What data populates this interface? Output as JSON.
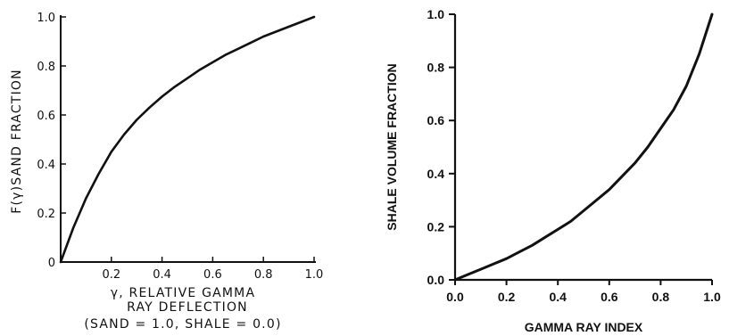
{
  "chart_data": [
    {
      "type": "line",
      "ylabel": "F(γ)SAND FRACTION",
      "xlabel_lines": [
        "γ, RELATIVE  GAMMA",
        "RAY  DEFLECTION",
        "(SAND = 1.0,  SHALE = 0.0)"
      ],
      "xlim": [
        0,
        1
      ],
      "ylim": [
        0,
        1
      ],
      "x_ticks": [
        "0.2",
        "0.4",
        "0.6",
        "0.8",
        "1.0"
      ],
      "y_ticks": [
        "0",
        "0.2",
        "0.4",
        "0.6",
        "0.8",
        "1.0"
      ],
      "series": [
        {
          "x": [
            0,
            0.05,
            0.1,
            0.15,
            0.2,
            0.25,
            0.3,
            0.35,
            0.4,
            0.45,
            0.5,
            0.55,
            0.6,
            0.65,
            0.7,
            0.75,
            0.8,
            0.85,
            0.9,
            0.95,
            1.0
          ],
          "y": [
            0,
            0.14,
            0.26,
            0.36,
            0.45,
            0.52,
            0.58,
            0.63,
            0.675,
            0.715,
            0.75,
            0.785,
            0.815,
            0.845,
            0.87,
            0.895,
            0.92,
            0.94,
            0.96,
            0.98,
            1.0
          ]
        }
      ],
      "grid": false,
      "style": "hand-drawn"
    },
    {
      "type": "line",
      "ylabel": "SHALE VOLUME FRACTION",
      "xlabel": "GAMMA RAY INDEX",
      "xlim": [
        0,
        1
      ],
      "ylim": [
        0,
        1
      ],
      "x_ticks": [
        "0.0",
        "0.2",
        "0.4",
        "0.6",
        "0.8",
        "1.0"
      ],
      "y_ticks": [
        "0.0",
        "0.2",
        "0.4",
        "0.6",
        "0.8",
        "1.0"
      ],
      "series": [
        {
          "x": [
            0,
            0.05,
            0.1,
            0.15,
            0.2,
            0.25,
            0.3,
            0.35,
            0.4,
            0.45,
            0.5,
            0.55,
            0.6,
            0.65,
            0.7,
            0.75,
            0.8,
            0.85,
            0.9,
            0.95,
            1.0
          ],
          "y": [
            0,
            0.02,
            0.04,
            0.06,
            0.08,
            0.105,
            0.13,
            0.16,
            0.19,
            0.22,
            0.26,
            0.3,
            0.34,
            0.39,
            0.44,
            0.5,
            0.57,
            0.64,
            0.73,
            0.85,
            1.0
          ]
        }
      ],
      "grid": false,
      "style": "computer-drawn"
    }
  ]
}
